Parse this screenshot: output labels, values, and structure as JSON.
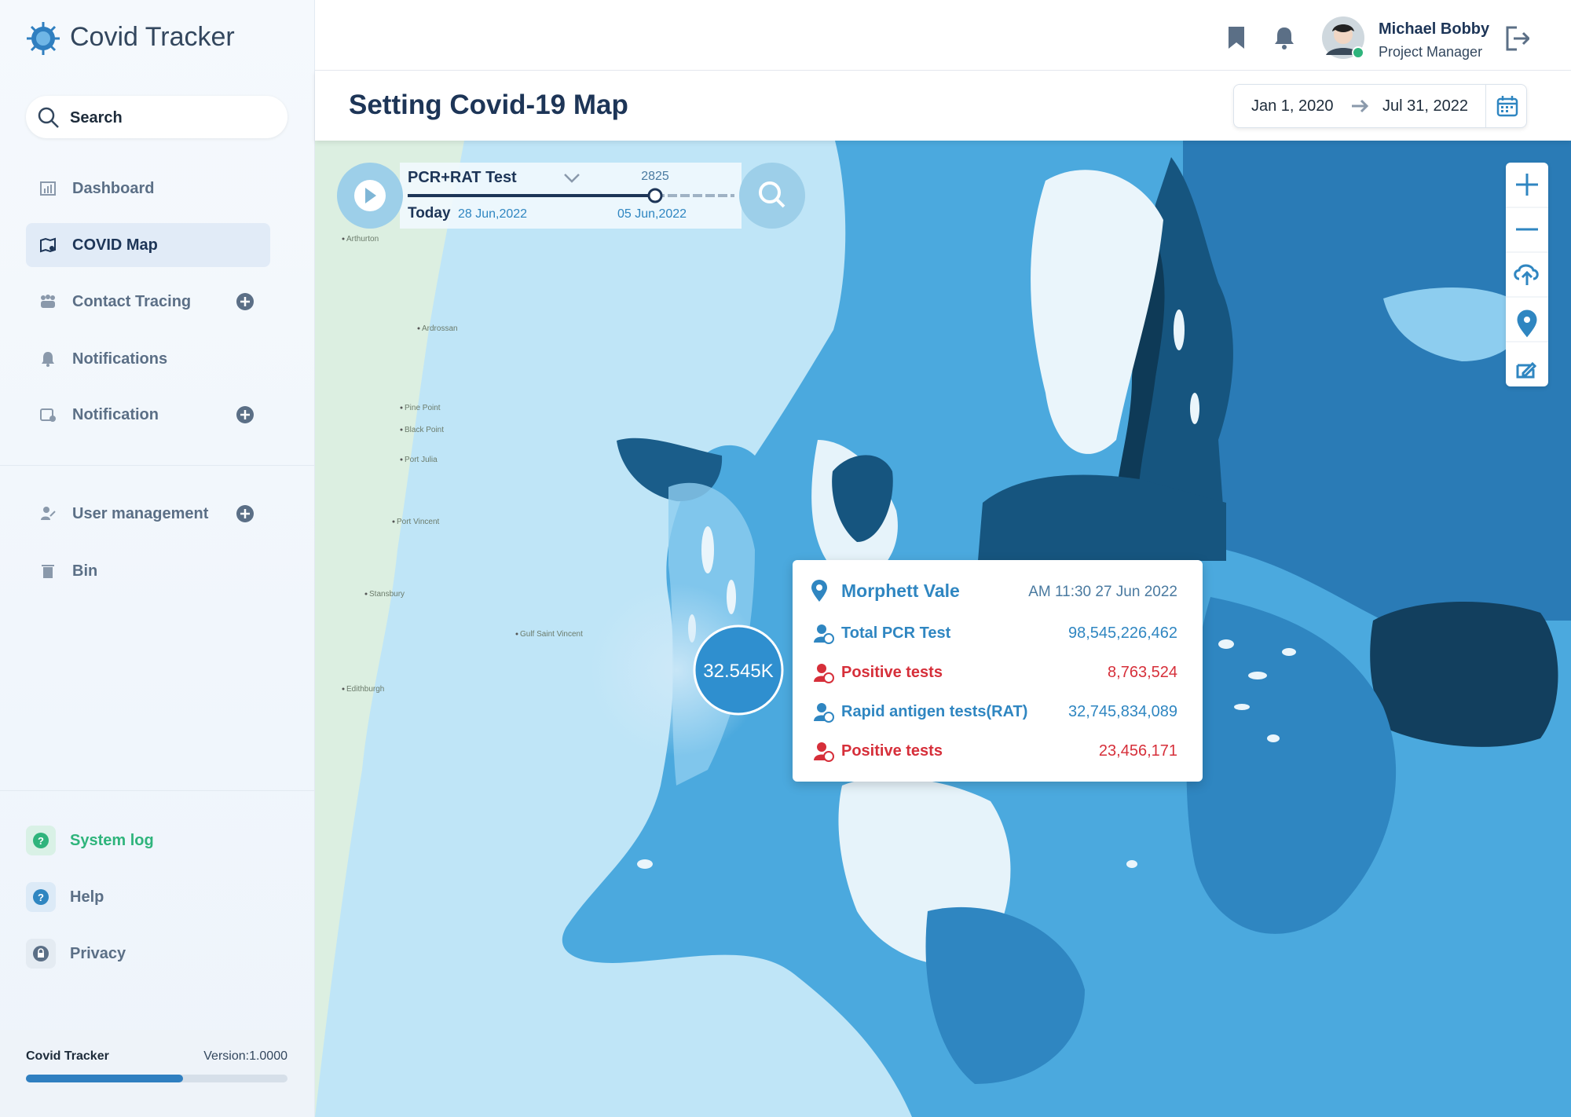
{
  "sidebar": {
    "brand": "Covid Tracker",
    "search": "Search",
    "nav": [
      {
        "label": "Dashboard"
      },
      {
        "label": "COVID Map"
      },
      {
        "label": "Contact Tracing"
      },
      {
        "label": "Notifications"
      },
      {
        "label": "Notification"
      }
    ],
    "nav2": [
      {
        "label": "User management"
      },
      {
        "label": "Bin"
      }
    ],
    "support": [
      {
        "label": "System log"
      },
      {
        "label": "Help"
      },
      {
        "label": "Privacy"
      }
    ],
    "footer": {
      "name": "Covid Tracker",
      "version": "Version:1.0000"
    }
  },
  "header": {
    "user_name": "Michael Bobby",
    "user_role": "Project Manager"
  },
  "page": {
    "title": "Setting Covid-19 Map",
    "date_from": "Jan 1, 2020",
    "date_to": "Jul 31, 2022"
  },
  "player": {
    "test": "PCR+RAT Test",
    "value": "2825",
    "today": "Today",
    "date_start": "28 Jun,2022",
    "date_current": "05 Jun,2022"
  },
  "map": {
    "bubble": "32.545K",
    "places": [
      "Arthurton",
      "Ardrossan",
      "Pine Point",
      "Black Point",
      "Port Julia",
      "Port Vincent",
      "Stansbury",
      "Gulf Saint Vincent",
      "Edithburgh"
    ]
  },
  "tooltip": {
    "place": "Morphett Vale",
    "time": "AM 11:30 27 Jun 2022",
    "rows": [
      {
        "label": "Total PCR Test",
        "value": "98,545,226,462"
      },
      {
        "label": "Positive tests",
        "value": "8,763,524"
      },
      {
        "label": "Rapid antigen tests(RAT)",
        "value": "32,745,834,089"
      },
      {
        "label": "Positive tests",
        "value": "23,456,171"
      }
    ]
  }
}
